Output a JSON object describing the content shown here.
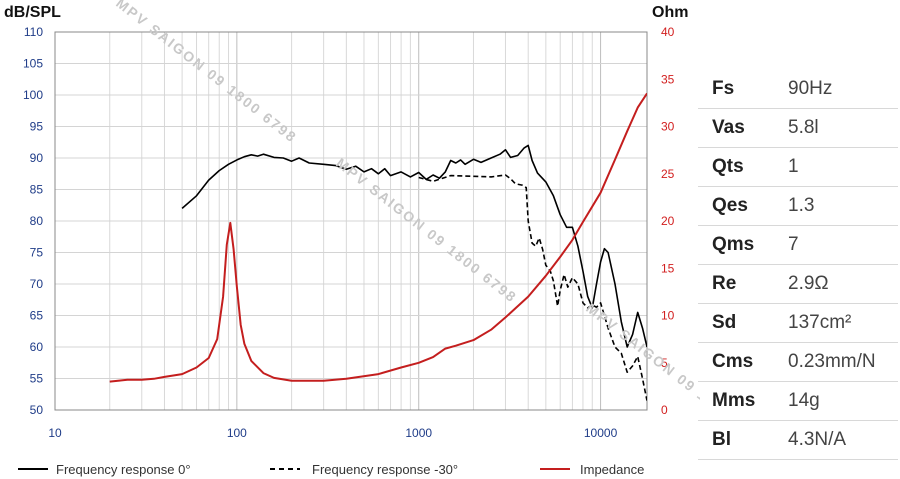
{
  "chart_data": {
    "type": "line",
    "x_scale": "log",
    "xlim": [
      10,
      18000
    ],
    "x_ticks": [
      10,
      100,
      1000,
      10000
    ],
    "left_axis": {
      "label": "dB/SPL",
      "ylim": [
        50,
        110
      ],
      "ticks": [
        50,
        55,
        60,
        65,
        70,
        75,
        80,
        85,
        90,
        95,
        100,
        105,
        110
      ],
      "color": "#1f3c88"
    },
    "right_axis": {
      "label": "Ohm",
      "ylim": [
        0,
        40
      ],
      "ticks": [
        0,
        5,
        10,
        15,
        20,
        25,
        30,
        35,
        40
      ],
      "color": "#d21f1f"
    },
    "grid": true,
    "legend_position": "bottom",
    "series": [
      {
        "name": "Frequency response 0°",
        "axis": "left",
        "color": "#000000",
        "dash": "solid",
        "points": [
          [
            50,
            82
          ],
          [
            60,
            84
          ],
          [
            70,
            86.5
          ],
          [
            80,
            88
          ],
          [
            90,
            89
          ],
          [
            100,
            89.7
          ],
          [
            110,
            90.2
          ],
          [
            120,
            90.5
          ],
          [
            130,
            90.3
          ],
          [
            140,
            90.6
          ],
          [
            160,
            90.1
          ],
          [
            180,
            90
          ],
          [
            200,
            89.5
          ],
          [
            220,
            90
          ],
          [
            250,
            89.2
          ],
          [
            300,
            89
          ],
          [
            350,
            88.8
          ],
          [
            400,
            88.2
          ],
          [
            450,
            88.7
          ],
          [
            500,
            87.8
          ],
          [
            550,
            88.3
          ],
          [
            600,
            87.5
          ],
          [
            650,
            88.3
          ],
          [
            700,
            87.2
          ],
          [
            800,
            87.8
          ],
          [
            900,
            87
          ],
          [
            1000,
            87.7
          ],
          [
            1100,
            86.6
          ],
          [
            1200,
            87.3
          ],
          [
            1300,
            86.8
          ],
          [
            1400,
            87.8
          ],
          [
            1500,
            89.6
          ],
          [
            1600,
            89.2
          ],
          [
            1700,
            89.7
          ],
          [
            1800,
            89
          ],
          [
            2000,
            89.8
          ],
          [
            2200,
            89.3
          ],
          [
            2500,
            90
          ],
          [
            2800,
            90.6
          ],
          [
            3000,
            91.3
          ],
          [
            3200,
            90.1
          ],
          [
            3500,
            90.4
          ],
          [
            3800,
            91.6
          ],
          [
            4000,
            92
          ],
          [
            4200,
            89.6
          ],
          [
            4500,
            87.6
          ],
          [
            5000,
            86.2
          ],
          [
            5500,
            84
          ],
          [
            6000,
            81
          ],
          [
            6500,
            79
          ],
          [
            7000,
            79
          ],
          [
            7500,
            76
          ],
          [
            8000,
            72
          ],
          [
            8500,
            68
          ],
          [
            9000,
            66.2
          ],
          [
            9500,
            70
          ],
          [
            10000,
            73.5
          ],
          [
            10500,
            75.6
          ],
          [
            11000,
            75
          ],
          [
            12000,
            70
          ],
          [
            13000,
            64
          ],
          [
            14000,
            60
          ],
          [
            15000,
            62
          ],
          [
            16000,
            65.5
          ],
          [
            17000,
            63
          ],
          [
            18000,
            60
          ]
        ]
      },
      {
        "name": "Frequency response -30°",
        "axis": "left",
        "color": "#000000",
        "dash": "dashed",
        "points": [
          [
            1000,
            86.9
          ],
          [
            1200,
            86.3
          ],
          [
            1500,
            87.2
          ],
          [
            2000,
            87.1
          ],
          [
            2500,
            87.0
          ],
          [
            3000,
            87.3
          ],
          [
            3200,
            86.7
          ],
          [
            3400,
            85.9
          ],
          [
            3700,
            85.7
          ],
          [
            3900,
            85.3
          ],
          [
            4000,
            80
          ],
          [
            4200,
            76.5
          ],
          [
            4400,
            76
          ],
          [
            4600,
            77.3
          ],
          [
            4800,
            75.5
          ],
          [
            5000,
            73
          ],
          [
            5300,
            72
          ],
          [
            5500,
            70.5
          ],
          [
            5800,
            66.5
          ],
          [
            6000,
            69
          ],
          [
            6300,
            71.5
          ],
          [
            6600,
            69.5
          ],
          [
            7000,
            71
          ],
          [
            7500,
            70
          ],
          [
            8000,
            67
          ],
          [
            8500,
            66.2
          ],
          [
            9000,
            66.7
          ],
          [
            9500,
            66.3
          ],
          [
            10000,
            67
          ],
          [
            11000,
            63
          ],
          [
            12000,
            60
          ],
          [
            13000,
            59
          ],
          [
            14000,
            56
          ],
          [
            15000,
            57
          ],
          [
            16000,
            58.5
          ],
          [
            17000,
            55
          ],
          [
            18000,
            51.5
          ]
        ]
      },
      {
        "name": "Impedance",
        "axis": "right",
        "color": "#c41e1e",
        "dash": "solid",
        "points": [
          [
            20,
            3.0
          ],
          [
            25,
            3.2
          ],
          [
            30,
            3.2
          ],
          [
            35,
            3.3
          ],
          [
            40,
            3.5
          ],
          [
            50,
            3.8
          ],
          [
            60,
            4.5
          ],
          [
            70,
            5.5
          ],
          [
            78,
            7.5
          ],
          [
            84,
            12
          ],
          [
            88,
            17.5
          ],
          [
            92,
            19.8
          ],
          [
            96,
            17
          ],
          [
            100,
            13
          ],
          [
            105,
            9
          ],
          [
            110,
            7
          ],
          [
            120,
            5.2
          ],
          [
            140,
            3.9
          ],
          [
            160,
            3.4
          ],
          [
            200,
            3.1
          ],
          [
            300,
            3.1
          ],
          [
            400,
            3.3
          ],
          [
            600,
            3.8
          ],
          [
            800,
            4.5
          ],
          [
            1000,
            5.0
          ],
          [
            1200,
            5.6
          ],
          [
            1400,
            6.5
          ],
          [
            1600,
            6.8
          ],
          [
            2000,
            7.4
          ],
          [
            2500,
            8.5
          ],
          [
            3000,
            9.8
          ],
          [
            4000,
            12
          ],
          [
            5000,
            14.2
          ],
          [
            6000,
            16.2
          ],
          [
            7000,
            18
          ],
          [
            8000,
            19.9
          ],
          [
            10000,
            23
          ],
          [
            12000,
            26.5
          ],
          [
            14000,
            29.5
          ],
          [
            16000,
            32
          ],
          [
            18000,
            33.5
          ]
        ]
      }
    ]
  },
  "specs": [
    {
      "key": "Fs",
      "value": "90Hz"
    },
    {
      "key": "Vas",
      "value": "5.8l"
    },
    {
      "key": "Qts",
      "value": "1"
    },
    {
      "key": "Qes",
      "value": "1.3"
    },
    {
      "key": "Qms",
      "value": "7"
    },
    {
      "key": "Re",
      "value": "2.9Ω"
    },
    {
      "key": "Sd",
      "value": "137cm²"
    },
    {
      "key": "Cms",
      "value": "0.23mm/N"
    },
    {
      "key": "Mms",
      "value": "14g"
    },
    {
      "key": "Bl",
      "value": "4.3N/A"
    }
  ],
  "watermark": "MPV SAIGON 09 1800 6798"
}
